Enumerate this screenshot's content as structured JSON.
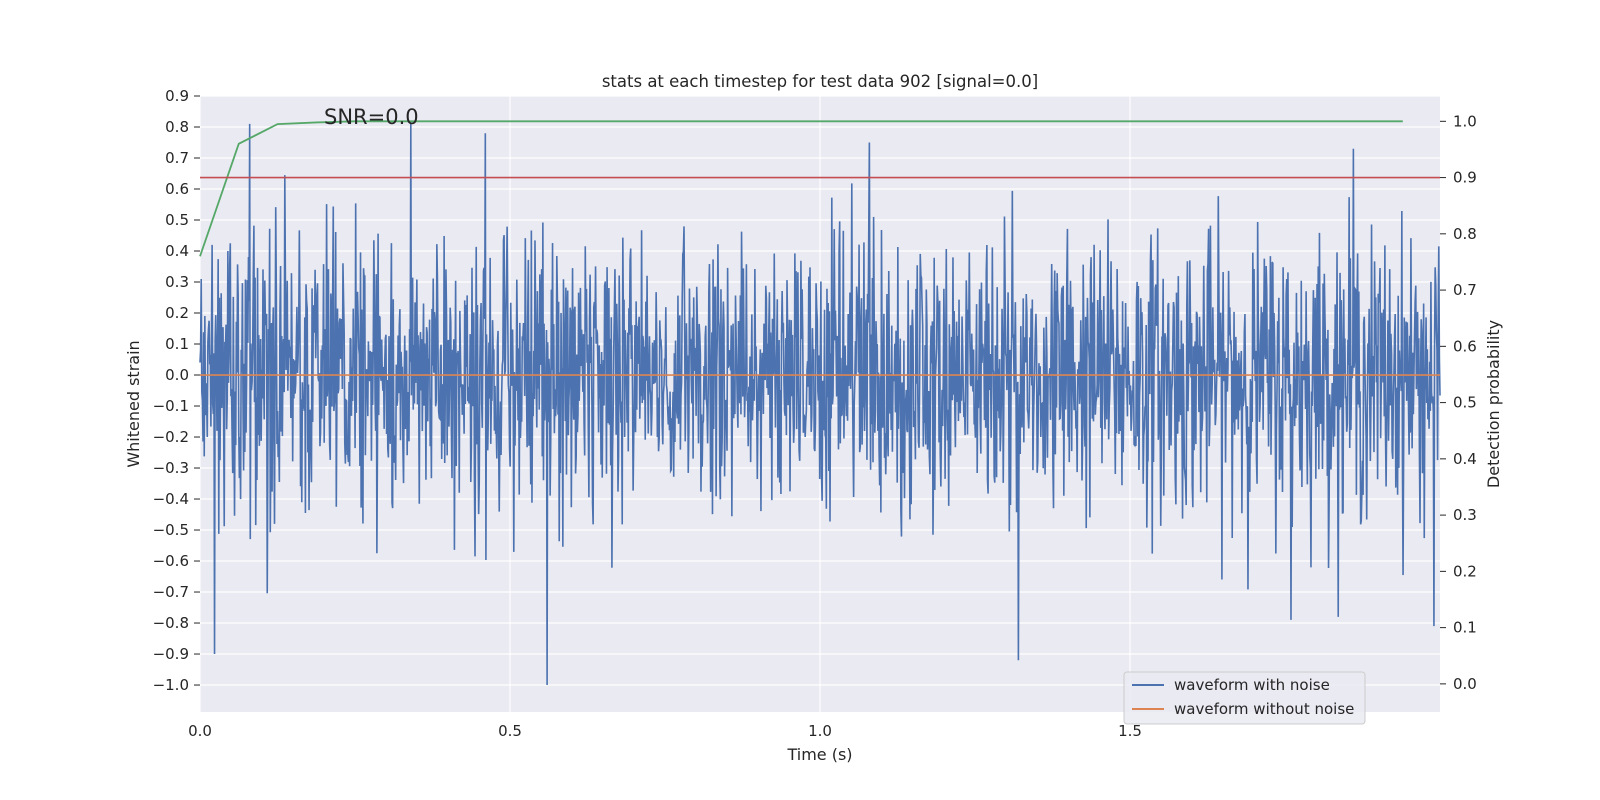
{
  "chart_data": {
    "type": "line",
    "title": "stats at each timestep for test data 902 [signal=0.0]",
    "xlabel": "Time (s)",
    "ylabel": "Whitened strain",
    "y2label": "Detection probability",
    "annotation": "SNR=0.0",
    "xlim": [
      0.0,
      2.0
    ],
    "ylim": [
      -1.087,
      0.9
    ],
    "y2lim": [
      -0.05,
      1.045
    ],
    "x_ticks": [
      "0.0",
      "0.5",
      "1.0",
      "1.5"
    ],
    "x_tick_values": [
      0.0,
      0.5,
      1.0,
      1.5
    ],
    "y_ticks": [
      "0.9",
      "0.8",
      "0.7",
      "0.6",
      "0.5",
      "0.4",
      "0.3",
      "0.2",
      "0.1",
      "0.0",
      "−0.1",
      "−0.2",
      "−0.3",
      "−0.4",
      "−0.5",
      "−0.6",
      "−0.7",
      "−0.8",
      "−0.9",
      "−1.0"
    ],
    "y_tick_values": [
      0.9,
      0.8,
      0.7,
      0.6,
      0.5,
      0.4,
      0.3,
      0.2,
      0.1,
      0.0,
      -0.1,
      -0.2,
      -0.3,
      -0.4,
      -0.5,
      -0.6,
      -0.7,
      -0.8,
      -0.9,
      -1.0
    ],
    "y2_ticks": [
      "1.0",
      "0.9",
      "0.8",
      "0.7",
      "0.6",
      "0.5",
      "0.4",
      "0.3",
      "0.2",
      "0.1",
      "0.0"
    ],
    "y2_tick_values": [
      1.0,
      0.9,
      0.8,
      0.7,
      0.6,
      0.5,
      0.4,
      0.3,
      0.2,
      0.1,
      0.0
    ],
    "grid": true,
    "legend_position": "lower-right",
    "series": [
      {
        "name": "waveform with noise",
        "color": "#4c72b0",
        "sampling": "dense noise, approx. 2048 samples over 0–2 s, amplitude roughly ±0.5 with spikes to 0.81 and −1.0",
        "extremes": [
          {
            "x": 0.023,
            "y": -0.9
          },
          {
            "x": 0.08,
            "y": 0.81
          },
          {
            "x": 0.34,
            "y": 0.81
          },
          {
            "x": 0.46,
            "y": 0.78
          },
          {
            "x": 0.56,
            "y": -1.0
          },
          {
            "x": 1.08,
            "y": 0.75
          },
          {
            "x": 1.32,
            "y": -0.92
          },
          {
            "x": 1.76,
            "y": -0.79
          },
          {
            "x": 1.86,
            "y": 0.73
          },
          {
            "x": 1.99,
            "y": -0.81
          }
        ]
      },
      {
        "name": "waveform without noise",
        "color": "#dd8452",
        "x": [
          0.0,
          2.0
        ],
        "y": [
          0.0,
          0.0
        ]
      },
      {
        "color": "#55a868",
        "axis": "right",
        "x": [
          0.0,
          0.0625,
          0.125,
          0.1875,
          0.25,
          0.5,
          1.0,
          1.5,
          1.94
        ],
        "y": [
          0.76,
          0.96,
          0.995,
          0.998,
          1.0,
          1.0,
          1.0,
          1.0,
          1.0
        ]
      },
      {
        "color": "#c44e52",
        "axis": "right",
        "x": [
          0.0,
          2.0
        ],
        "y": [
          0.9,
          0.9
        ]
      }
    ]
  }
}
